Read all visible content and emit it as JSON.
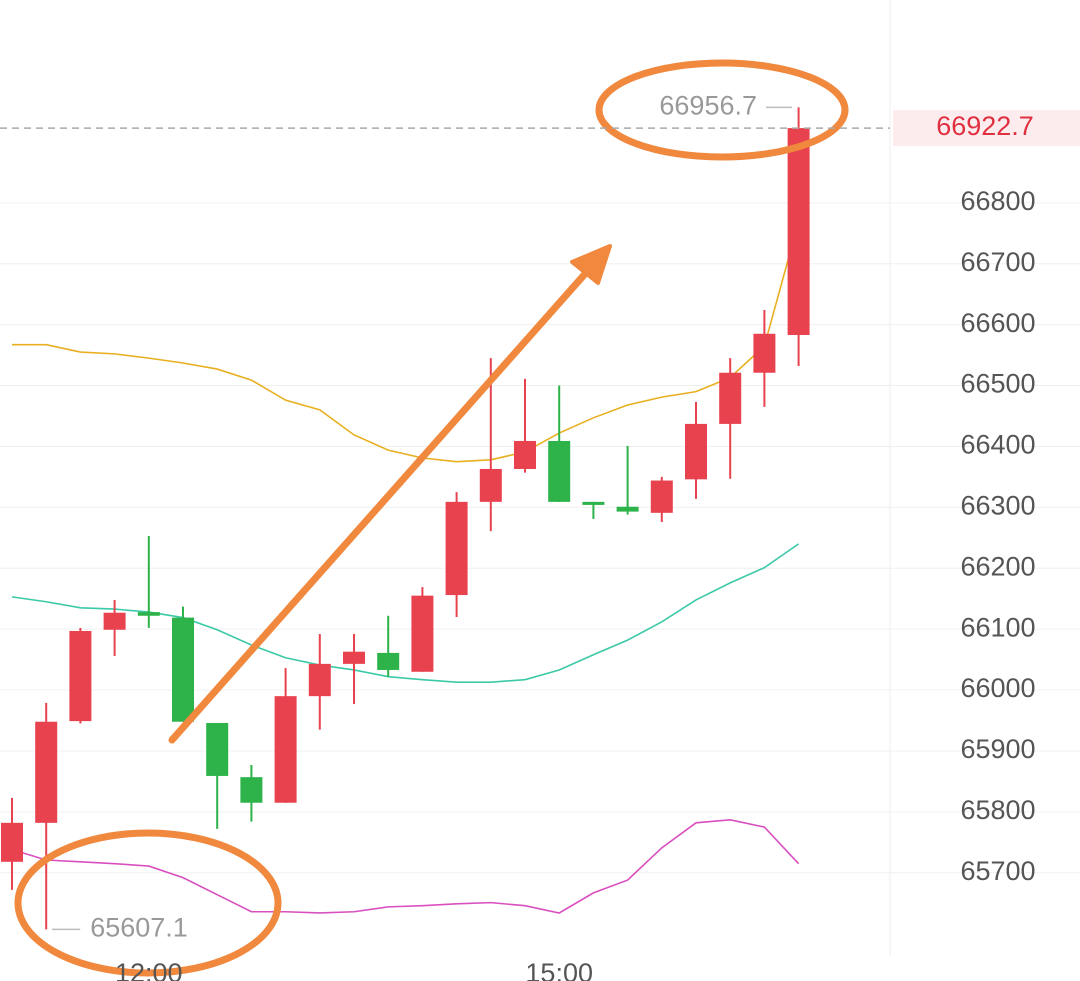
{
  "chart_data": {
    "type": "candlestick",
    "categories": [
      null,
      null,
      null,
      null,
      "12:00",
      null,
      null,
      null,
      null,
      null,
      null,
      null,
      null,
      null,
      null,
      null,
      "15:00",
      null,
      null,
      null,
      null,
      null,
      null,
      null
    ],
    "open": [
      65718,
      65782,
      65949,
      66099,
      66128,
      66119,
      65946,
      65857,
      65815,
      65990,
      66043,
      66061,
      66030,
      66156,
      66309,
      66363,
      66409,
      66309,
      66301,
      66291,
      66346,
      66437,
      66521,
      66583
    ],
    "high": [
      65823,
      65979,
      66102,
      66148,
      66253,
      66137,
      65946,
      65877,
      66036,
      66092,
      66092,
      66122,
      66169,
      66325,
      66545,
      66511,
      66500,
      66309,
      66401,
      66350,
      66473,
      66545,
      66624,
      66956.7
    ],
    "low": [
      65672,
      65607.1,
      65945,
      66056,
      66102,
      65948,
      65772,
      65784,
      65815,
      65935,
      65977,
      66022,
      66030,
      66120,
      66261,
      66357,
      66309,
      66281,
      66288,
      66276,
      66314,
      66347,
      66465,
      66532
    ],
    "close": [
      65782,
      65948,
      66097,
      66127,
      66122,
      65948,
      65859,
      65815,
      65990,
      66043,
      66063,
      66033,
      66155,
      66309,
      66363,
      66409,
      66309,
      66304,
      66293,
      66344,
      66437,
      66521,
      66585,
      66922.7
    ],
    "up_color": "#e8424f",
    "down_color": "#2db34a",
    "overlays": [
      {
        "color": "#e8b020",
        "values": [
          66567,
          66567,
          66555,
          66552,
          66545,
          66537,
          66527,
          66509,
          66476,
          66460,
          66419,
          66394,
          66381,
          66375,
          66378,
          66391,
          66422,
          66447,
          66468,
          66481,
          66490,
          66513,
          66565,
          66769
        ]
      },
      {
        "color": "#3cc9a8",
        "values": [
          66153,
          66145,
          66135,
          66133,
          66128,
          66119,
          66099,
          66074,
          66053,
          66041,
          66033,
          66022,
          66017,
          66013,
          66013,
          66017,
          66033,
          66058,
          66082,
          66112,
          66148,
          66176,
          66201,
          66240
        ]
      },
      {
        "color": "#d94fc0",
        "values": [
          65738,
          65721,
          65718,
          65715,
          65711,
          65692,
          65664,
          65636,
          65636,
          65634,
          65636,
          65644,
          65646,
          65649,
          65651,
          65646,
          65634,
          65667,
          65688,
          65741,
          65782,
          65787,
          65775,
          65715
        ]
      }
    ],
    "last_price": 66922.7,
    "ylim": [
      65565,
      67133
    ],
    "yticks": [
      65700,
      65800,
      65900,
      66000,
      66100,
      66200,
      66300,
      66400,
      66500,
      66600,
      66700,
      66800
    ],
    "grid": true
  }
}
